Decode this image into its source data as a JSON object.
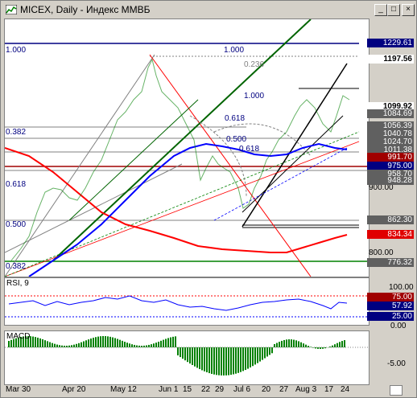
{
  "window": {
    "title": "MICEX, Daily - Индекс ММВБ",
    "buttons": [
      "_",
      "□",
      "×"
    ]
  },
  "price_panel": {
    "fib_labels": [
      "1.000",
      "1.000",
      "0.236",
      "1.000",
      "0.618",
      "0.382",
      "0.500",
      "0.618",
      "0.618",
      "0.500",
      "0.382"
    ],
    "axis_ticks": [
      "900.00",
      "800.00"
    ],
    "price_tags": [
      {
        "text": "1229.61",
        "color": "#ffffff",
        "bg": "#000080"
      },
      {
        "text": "1197.56",
        "color": "#000000",
        "bg": "#ffffff"
      },
      {
        "text": "1099.92",
        "color": "#000000",
        "bg": "#ffffff"
      },
      {
        "text": "1084.69",
        "color": "#ffffff",
        "bg": "#606060"
      },
      {
        "text": "1056.39",
        "color": "#ffffff",
        "bg": "#606060"
      },
      {
        "text": "1040.78",
        "color": "#ffffff",
        "bg": "#606060"
      },
      {
        "text": "1024.70",
        "color": "#ffffff",
        "bg": "#606060"
      },
      {
        "text": "1011.38",
        "color": "#ffffff",
        "bg": "#606060"
      },
      {
        "text": "991.70",
        "color": "#ffffff",
        "bg": "#a00000"
      },
      {
        "text": "975.00",
        "color": "#ffffff",
        "bg": "#000080"
      },
      {
        "text": "958.70",
        "color": "#ffffff",
        "bg": "#606060"
      },
      {
        "text": "948.28",
        "color": "#ffffff",
        "bg": "#606060"
      },
      {
        "text": "862.30",
        "color": "#ffffff",
        "bg": "#606060"
      },
      {
        "text": "834.34",
        "color": "#ffffff",
        "bg": "#e00000"
      },
      {
        "text": "776.32",
        "color": "#ffffff",
        "bg": "#606060"
      }
    ]
  },
  "rsi_panel": {
    "label": "RSI, 9",
    "ticks": [
      "100.00",
      "75.00",
      "57.92",
      "25.00",
      "0.00"
    ]
  },
  "macd_panel": {
    "label": "MACD",
    "ticks": [
      "-5.00"
    ]
  },
  "x_axis": {
    "labels": [
      "Mar 30",
      "Apr 20",
      "May 12",
      "Jun 1",
      "15",
      "22",
      "29",
      "Jul 6",
      "20",
      "27",
      "Aug 3",
      "17",
      "24"
    ]
  },
  "colors": {
    "candle_up": "#008000",
    "candle_down": "#ff0000",
    "ma_blue": "#0000ff",
    "ma_red": "#ff0000",
    "trend_green": "#006400"
  }
}
